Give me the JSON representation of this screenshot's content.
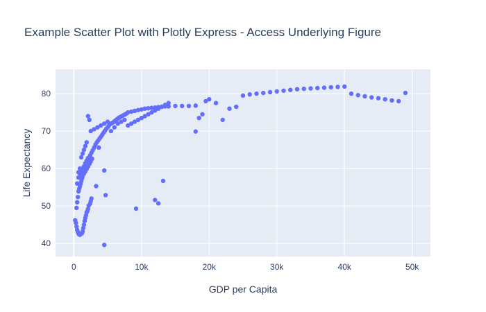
{
  "chart_data": {
    "type": "scatter",
    "title": "Example Scatter Plot with Plotly Express - Access Underlying Figure",
    "xlabel": "GDP per Capita",
    "ylabel": "Life Expectancy",
    "xlim": [
      -2700,
      52700
    ],
    "ylim": [
      36.5,
      86.5
    ],
    "xticks": [
      0,
      10000,
      20000,
      30000,
      40000,
      50000
    ],
    "xtick_labels": [
      "0",
      "10k",
      "20k",
      "30k",
      "40k",
      "50k"
    ],
    "yticks": [
      40,
      50,
      60,
      70,
      80
    ],
    "ytick_labels": [
      "40",
      "50",
      "60",
      "70",
      "80"
    ],
    "grid": true,
    "colors": {
      "plot_bg": "#e5ecf6",
      "grid": "#ffffff",
      "marker": "#636efa",
      "text": "#2a3f5f"
    },
    "series": [
      {
        "x": [
          200,
          300,
          400,
          500,
          600,
          700,
          800,
          900,
          1000,
          1100,
          1200,
          1300,
          1400,
          1500,
          1600,
          1700,
          1800,
          1900,
          2000,
          2100,
          2200,
          2400,
          2500,
          2600,
          400,
          500,
          600,
          700,
          800,
          900,
          1000,
          1100,
          1200,
          1300,
          1500,
          1700,
          1900,
          2100,
          2300,
          2500,
          2700,
          500,
          700,
          900,
          1100,
          1300,
          1500,
          1700,
          1900,
          2100,
          2400,
          2600,
          2800,
          3000,
          3200,
          3400,
          3600,
          3800,
          4000,
          4200,
          4400,
          4600,
          4800,
          5000,
          5200,
          5400,
          700,
          900,
          1100,
          1300,
          1500,
          1700,
          1900,
          2100,
          2300,
          3300,
          3700,
          4500,
          4700,
          5500,
          5800,
          6000,
          6200,
          6400,
          6600,
          6800,
          7000,
          7200,
          7400,
          7600,
          7800,
          8000,
          8500,
          9000,
          9500,
          10000,
          10500,
          11000,
          11500,
          12000,
          12500,
          13000,
          13500,
          14000,
          15000,
          16000,
          17000,
          18000,
          2500,
          3000,
          3500,
          4000,
          4500,
          5000,
          5500,
          6000,
          6500,
          7000,
          7500,
          8000,
          8500,
          9000,
          9500,
          10000,
          10500,
          11000,
          11500,
          12000,
          12500,
          13000,
          13500,
          14000,
          18000,
          18500,
          19000,
          19500,
          20000,
          21000,
          22000,
          23000,
          24000,
          25000,
          26000,
          27000,
          28000,
          29000,
          30000,
          31000,
          32000,
          33000,
          34000,
          35000,
          36000,
          37000,
          38000,
          39000,
          40000,
          41000,
          42000,
          43000,
          44000,
          45000,
          46000,
          47000,
          48000,
          49000,
          4500,
          9200,
          12000,
          12500,
          13200
        ],
        "y": [
          46.2,
          45.5,
          44.5,
          43.6,
          43.0,
          42.6,
          42.4,
          42.3,
          42.5,
          42.6,
          42.7,
          43.2,
          44.1,
          45.0,
          46.0,
          46.8,
          47.5,
          48.3,
          48.6,
          49.2,
          50.1,
          50.6,
          51.3,
          52.0,
          49.5,
          51.0,
          52.4,
          53.9,
          54.6,
          55.2,
          55.9,
          56.6,
          57.3,
          57.9,
          58.6,
          59.2,
          59.9,
          60.5,
          61.2,
          61.9,
          62.6,
          56.0,
          57.6,
          58.6,
          59.2,
          60.0,
          60.6,
          61.4,
          62.1,
          62.8,
          63.5,
          64.2,
          64.9,
          65.6,
          66.4,
          67.0,
          67.5,
          68.0,
          68.5,
          69.0,
          69.6,
          70.1,
          70.6,
          71.0,
          71.5,
          71.9,
          59.0,
          60.0,
          63.0,
          64.0,
          65.0,
          66.0,
          67.0,
          74.0,
          73.0,
          55.3,
          65.6,
          59.5,
          52.9,
          72.0,
          72.3,
          72.6,
          72.9,
          73.2,
          73.5,
          73.7,
          73.9,
          74.1,
          74.3,
          74.5,
          74.7,
          75.0,
          75.2,
          75.4,
          75.6,
          75.8,
          76.0,
          76.1,
          76.2,
          76.3,
          76.4,
          76.5,
          76.6,
          76.6,
          76.7,
          76.7,
          76.7,
          76.8,
          70.0,
          70.5,
          71.0,
          71.5,
          72.0,
          72.5,
          70.0,
          71.0,
          72.0,
          72.5,
          73.0,
          71.5,
          72.0,
          72.5,
          73.0,
          73.5,
          74.0,
          74.5,
          75.0,
          75.5,
          76.0,
          76.5,
          77.0,
          77.5,
          69.9,
          73.5,
          74.5,
          78.0,
          78.5,
          77.5,
          73.0,
          76.0,
          76.5,
          79.5,
          79.8,
          80.0,
          80.2,
          80.4,
          80.6,
          80.8,
          81.0,
          81.2,
          81.3,
          81.4,
          81.5,
          81.6,
          81.7,
          81.8,
          81.9,
          80.0,
          79.6,
          79.3,
          79.0,
          78.8,
          78.5,
          78.2,
          78.0,
          80.2,
          39.6,
          49.3,
          51.6,
          50.7,
          56.7
        ]
      }
    ]
  }
}
